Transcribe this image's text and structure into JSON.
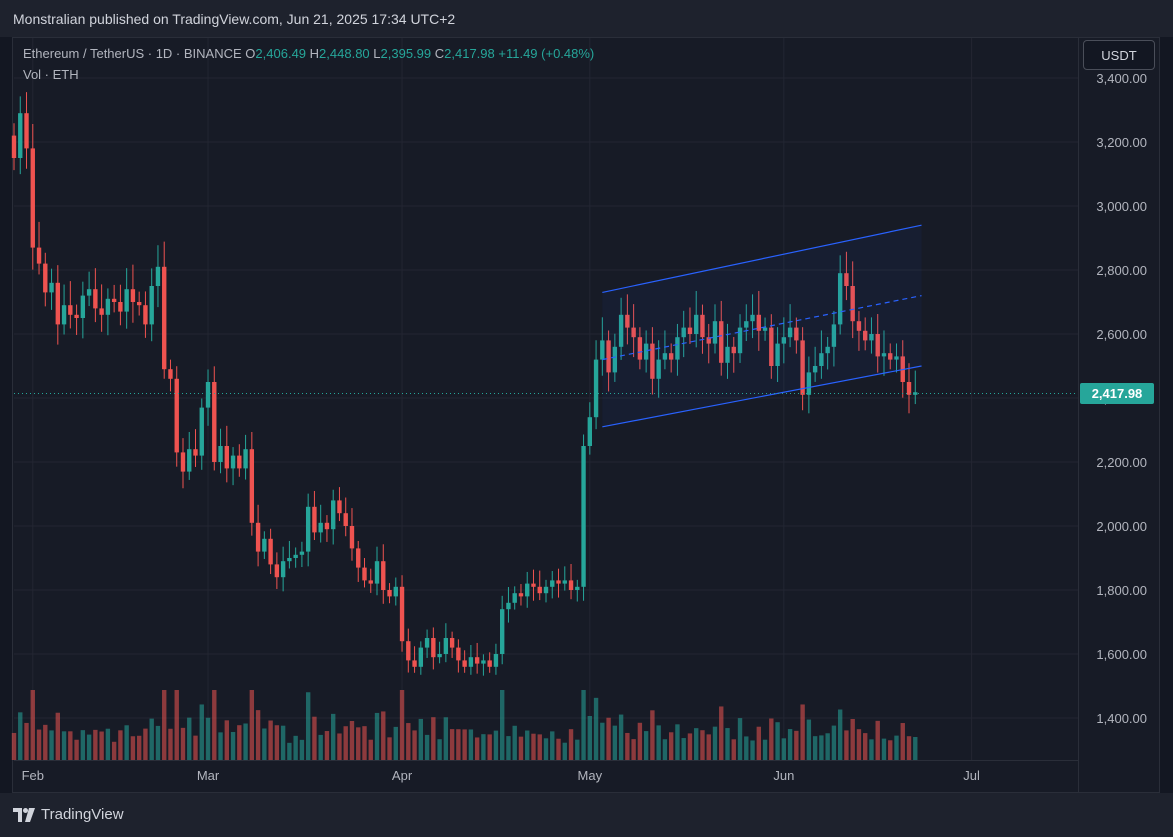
{
  "header": {
    "publisher": "Monstralian published on TradingView.com, Jun 21, 2025 17:34 UTC+2"
  },
  "legend": {
    "symbol": "Ethereum / TetherUS · 1D · BINANCE",
    "o_label": "O",
    "o_value": "2,406.49",
    "h_label": "H",
    "h_value": "2,448.80",
    "l_label": "L",
    "l_value": "2,395.99",
    "c_label": "C",
    "c_value": "2,417.98",
    "change": "+11.49 (+0.48%)",
    "volume": "Vol · ETH"
  },
  "currency_button": "USDT",
  "last_price": "2,417.98",
  "footer": {
    "brand": "TradingView"
  },
  "colors": {
    "up": "#26a69a",
    "down": "#ef5350",
    "channel": "#2962ff",
    "background": "#131722"
  },
  "chart_data": {
    "type": "candlestick",
    "title": "Ethereum / TetherUS · 1D · BINANCE",
    "y_axis": {
      "ticks": [
        1400,
        1600,
        1800,
        2000,
        2200,
        2400,
        2600,
        2800,
        3000,
        3200,
        3400
      ],
      "tick_labels": [
        "1,400.00",
        "1,600.00",
        "1,800.00",
        "2,000.00",
        "2,200.00",
        "2,400.00",
        "2,600.00",
        "2,800.00",
        "3,000.00",
        "3,200.00",
        "3,400.00"
      ],
      "range": [
        1270,
        3450
      ]
    },
    "x_axis": {
      "ticks": [
        {
          "label": "Feb",
          "day": 3
        },
        {
          "label": "Mar",
          "day": 31
        },
        {
          "label": "Apr",
          "day": 62
        },
        {
          "label": "May",
          "day": 92
        },
        {
          "label": "Jun",
          "day": 123
        },
        {
          "label": "Jul",
          "day": 153
        }
      ],
      "range_days": [
        0,
        170
      ]
    },
    "grid": true,
    "closes": [
      3150,
      3290,
      3180,
      2870,
      2820,
      2730,
      2760,
      2630,
      2690,
      2660,
      2650,
      2720,
      2740,
      2680,
      2660,
      2710,
      2700,
      2670,
      2740,
      2700,
      2690,
      2630,
      2750,
      2810,
      2490,
      2460,
      2230,
      2170,
      2240,
      2220,
      2370,
      2450,
      2200,
      2250,
      2180,
      2220,
      2180,
      2240,
      2010,
      1920,
      1960,
      1880,
      1840,
      1890,
      1900,
      1910,
      1920,
      2060,
      1980,
      2010,
      1990,
      2080,
      2040,
      2000,
      1930,
      1870,
      1830,
      1820,
      1890,
      1800,
      1780,
      1810,
      1640,
      1580,
      1560,
      1620,
      1650,
      1590,
      1600,
      1650,
      1620,
      1580,
      1560,
      1590,
      1570,
      1580,
      1560,
      1600,
      1740,
      1760,
      1790,
      1780,
      1820,
      1810,
      1790,
      1810,
      1830,
      1820,
      1830,
      1800,
      1810,
      2250,
      2340,
      2520,
      2580,
      2480,
      2560,
      2660,
      2620,
      2590,
      2520,
      2570,
      2460,
      2520,
      2540,
      2520,
      2590,
      2620,
      2600,
      2660,
      2590,
      2570,
      2640,
      2510,
      2560,
      2540,
      2620,
      2640,
      2660,
      2610,
      2620,
      2500,
      2570,
      2590,
      2620,
      2580,
      2410,
      2480,
      2500,
      2540,
      2560,
      2630,
      2790,
      2750,
      2640,
      2610,
      2580,
      2600,
      2530,
      2540,
      2520,
      2530,
      2450,
      2410,
      2418
    ],
    "channel": {
      "lower": [
        [
          94,
          2310
        ],
        [
          145,
          2500
        ]
      ],
      "upper": [
        [
          94,
          2730
        ],
        [
          145,
          2940
        ]
      ],
      "middle_dashed": [
        [
          94,
          2520
        ],
        [
          145,
          2720
        ]
      ]
    }
  }
}
